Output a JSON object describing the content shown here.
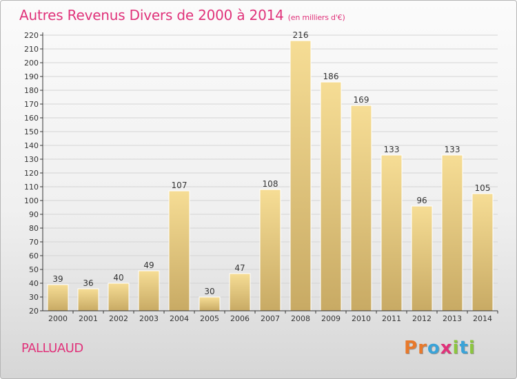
{
  "title": "Autres Revenus Divers de 2000 à 2014",
  "subtitle": "(en milliers d'€)",
  "commune": "PALLUAUD",
  "logo": {
    "text": "Proxiti",
    "letters": [
      {
        "ch": "P",
        "color": "#e8792b"
      },
      {
        "ch": "r",
        "color": "#e8792b"
      },
      {
        "ch": "o",
        "color": "#3aa3d8"
      },
      {
        "ch": "x",
        "color": "#e0327a"
      },
      {
        "ch": "i",
        "color": "#8cc63f"
      },
      {
        "ch": "t",
        "color": "#3aa3d8"
      },
      {
        "ch": "i",
        "color": "#8cc63f"
      }
    ]
  },
  "colors": {
    "bar_light": "#f6dd95",
    "bar_dark": "#c8aa64",
    "bar_border": "#ffffff",
    "axis": "#333333",
    "grid": "#d4d4d4",
    "title": "#e0327a"
  },
  "chart_data": {
    "type": "bar",
    "title": "Autres Revenus Divers de 2000 à 2014",
    "categories": [
      "2000",
      "2001",
      "2002",
      "2003",
      "2004",
      "2005",
      "2006",
      "2007",
      "2008",
      "2009",
      "2010",
      "2011",
      "2012",
      "2013",
      "2014"
    ],
    "values": [
      39,
      36,
      40,
      49,
      107,
      30,
      47,
      108,
      216,
      186,
      169,
      133,
      96,
      133,
      105
    ],
    "ylim": [
      20,
      220
    ],
    "yticks": [
      20,
      30,
      40,
      50,
      60,
      70,
      80,
      90,
      100,
      110,
      120,
      130,
      140,
      150,
      160,
      170,
      180,
      190,
      200,
      210,
      220
    ],
    "xlabel": "",
    "ylabel": "",
    "grid": true,
    "data_labels": true
  }
}
